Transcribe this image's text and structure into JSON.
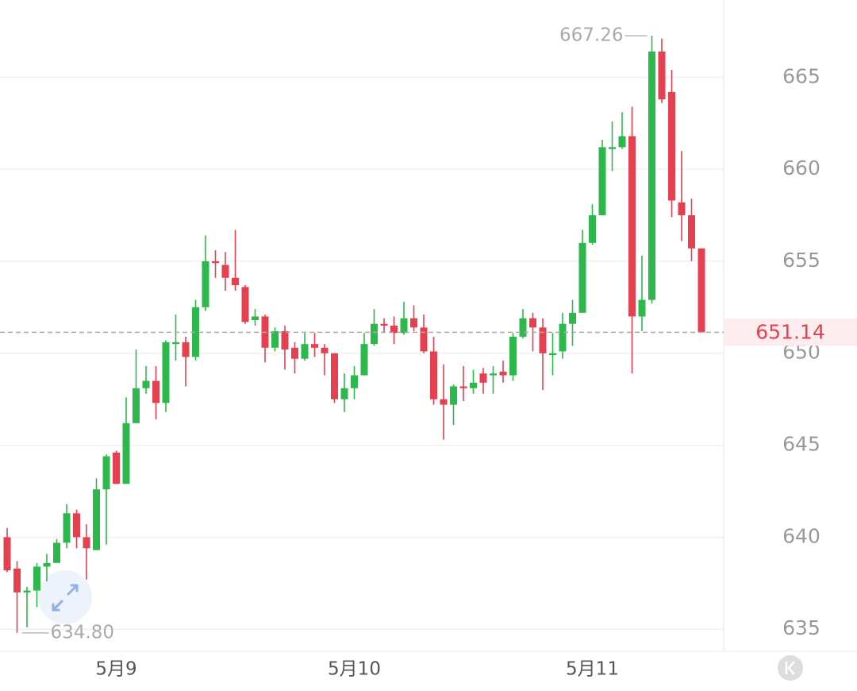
{
  "chart_data": {
    "type": "candlestick",
    "categories": [
      null,
      null,
      null,
      null,
      null,
      null,
      null,
      null,
      null,
      null,
      null,
      "5月9",
      null,
      null,
      null,
      null,
      null,
      null,
      null,
      null,
      null,
      null,
      null,
      null,
      null,
      null,
      null,
      null,
      null,
      null,
      null,
      null,
      null,
      null,
      null,
      "5月10",
      null,
      null,
      null,
      null,
      null,
      null,
      null,
      null,
      null,
      null,
      null,
      null,
      null,
      null,
      null,
      null,
      null,
      null,
      null,
      null,
      null,
      null,
      null,
      "5月11",
      null,
      null,
      null,
      null,
      null,
      null,
      null,
      null,
      null,
      null,
      null
    ],
    "open": [
      640.0,
      638.3,
      637.0,
      637.1,
      638.4,
      638.6,
      639.7,
      641.3,
      640.0,
      639.3,
      642.6,
      644.6,
      642.9,
      646.2,
      648.1,
      648.5,
      647.3,
      650.5,
      650.6,
      649.8,
      652.5,
      655.0,
      654.8,
      654.1,
      653.6,
      651.8,
      652.0,
      650.3,
      651.2,
      650.3,
      649.7,
      650.5,
      650.3,
      650.0,
      647.5,
      648.1,
      648.8,
      650.5,
      651.6,
      651.5,
      651.1,
      651.9,
      651.4,
      650.1,
      647.5,
      647.2,
      648.2,
      648.1,
      648.9,
      648.8,
      649.0,
      648.8,
      650.9,
      651.9,
      651.4,
      649.9,
      650.1,
      651.6,
      652.2,
      656.0,
      657.5,
      661.1,
      661.2,
      661.8,
      652.0,
      652.9,
      666.4,
      664.2,
      658.2,
      657.5,
      655.7
    ],
    "high": [
      640.5,
      638.7,
      637.3,
      638.6,
      639.1,
      639.9,
      641.8,
      641.5,
      640.7,
      643.2,
      644.5,
      644.7,
      647.6,
      650.2,
      649.3,
      649.3,
      650.7,
      652.1,
      650.9,
      652.9,
      656.4,
      655.6,
      655.5,
      656.7,
      653.7,
      652.4,
      652.1,
      651.4,
      651.5,
      650.6,
      651.1,
      651.1,
      650.5,
      650.0,
      648.9,
      649.3,
      651.1,
      652.4,
      651.9,
      652.0,
      652.8,
      652.6,
      652.1,
      650.9,
      649.4,
      648.3,
      649.3,
      649.1,
      649.2,
      649.3,
      649.6,
      651.1,
      652.4,
      652.2,
      651.9,
      651.1,
      652.2,
      652.9,
      656.7,
      658.1,
      661.6,
      662.6,
      663.1,
      663.4,
      655.3,
      667.26,
      667.1,
      665.4,
      661.0,
      658.4,
      655.7
    ],
    "low": [
      638.1,
      634.8,
      635.1,
      636.2,
      637.6,
      638.9,
      639.4,
      639.4,
      637.7,
      639.3,
      639.6,
      642.9,
      642.9,
      646.2,
      647.8,
      646.4,
      646.8,
      649.6,
      648.2,
      649.6,
      652.3,
      654.1,
      653.4,
      653.4,
      651.6,
      651.5,
      649.5,
      650.1,
      649.1,
      648.9,
      649.6,
      649.8,
      648.8,
      647.3,
      646.8,
      647.5,
      648.8,
      650.4,
      651.1,
      650.5,
      651.0,
      651.2,
      650.0,
      647.2,
      645.3,
      646.1,
      647.4,
      647.8,
      647.8,
      647.8,
      648.4,
      648.5,
      650.8,
      650.1,
      648.0,
      648.8,
      649.7,
      650.4,
      652.2,
      655.9,
      657.5,
      659.9,
      661.1,
      648.9,
      651.2,
      652.7,
      663.6,
      657.4,
      656.1,
      655.0,
      651.14
    ],
    "close": [
      638.2,
      637.0,
      637.1,
      638.4,
      638.6,
      639.7,
      641.3,
      640.0,
      639.4,
      642.6,
      644.4,
      642.9,
      646.2,
      648.1,
      648.5,
      647.3,
      650.6,
      650.6,
      649.8,
      652.5,
      655.0,
      654.9,
      654.1,
      653.7,
      651.7,
      652.0,
      650.3,
      651.2,
      650.2,
      649.7,
      650.5,
      650.3,
      650.0,
      647.5,
      648.1,
      648.8,
      650.5,
      651.6,
      651.5,
      651.1,
      651.9,
      651.4,
      650.1,
      647.5,
      647.2,
      648.2,
      648.1,
      648.4,
      648.4,
      648.9,
      648.8,
      650.9,
      651.9,
      651.4,
      650.0,
      650.0,
      651.6,
      652.2,
      656.0,
      657.5,
      661.2,
      661.2,
      661.8,
      652.0,
      652.9,
      666.4,
      663.8,
      658.3,
      657.5,
      655.7,
      651.14
    ],
    "up_color": "#2db84c",
    "down_color": "#e5404f",
    "ylim": [
      633.8,
      669.2
    ],
    "yticks": [
      635,
      640,
      645,
      650,
      655,
      660,
      665
    ],
    "grid": true,
    "last_price": 651.14,
    "high_marker": 667.26,
    "low_marker": {
      "value": 634.8,
      "label": "634.80"
    }
  }
}
